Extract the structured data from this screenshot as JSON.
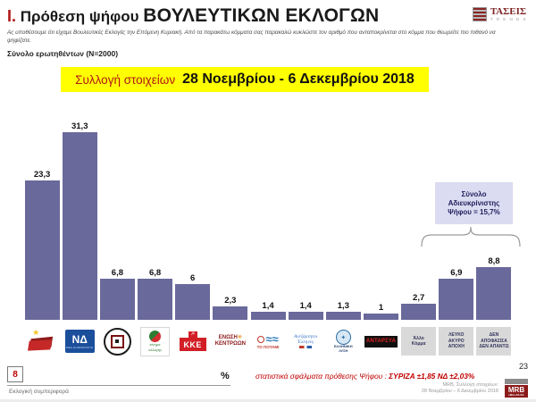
{
  "header": {
    "title_prefix": "Ι.",
    "title_main": " Πρόθεση ψήφου ",
    "title_caps": "ΒΟΥΛΕΥΤΙΚΩΝ ΕΚΛΟΓΩΝ",
    "subtitle": "Ας υποθέσουμε ότι είχαμε Βουλευτικές Εκλογές την Επόμενη Κυριακή. Από τα παρακάτω κόμματα σας παρακαλώ κυκλώστε τον αριθμό που ανταποκρίνεται στο κόμμα που θεωρείτε πιο πιθανό να ψηφίζατε.",
    "sample": "Σύνολο ερωτηθέντων (N=2000)",
    "banner_label": "Συλλογή στοιχείων",
    "banner_dates": "28 Νοεμβρίου - 6 Δεκεμβρίου 2018",
    "trends": {
      "name": "ΤΑΣΕΙΣ",
      "sub": "T R E N D S"
    }
  },
  "chart_data": {
    "type": "bar",
    "title": "Πρόθεση ψήφου Βουλευτικών Εκλογών",
    "ylabel": "%",
    "ylim": [
      0,
      35
    ],
    "grid": false,
    "bar_color": "#6a699b",
    "categories": [
      "ΣΥΡΙΖΑ",
      "ΝΔ",
      "ΧΡΥΣΗ ΑΥΓΗ",
      "ΚΙΝΗΜΑ ΑΛΛΑΓΗΣ",
      "ΚΚΕ",
      "ΕΝΩΣΗ ΚΕΝΤΡΩΩΝ",
      "ΤΟ ΠΟΤΑΜΙ",
      "ΑΝΕΞΑΡΤΗΤΟΙ ΕΛΛΗΝΕΣ",
      "ΕΛΛΗΝΙΚΗ ΛΥΣΗ",
      "ΑΝΤΑΡΣΥΑ",
      "Άλλο Κόμμα",
      "ΛΕΥΚΟ ΑΚΥΡΟ ΑΠΟΧΗ",
      "ΔΕΝ ΑΠΟΦΑΣΙΣΑ ΔΕΝ ΑΠΑΝΤΩ"
    ],
    "values": [
      23.3,
      31.3,
      6.8,
      6.8,
      6,
      2.3,
      1.4,
      1.4,
      1.3,
      1,
      2.7,
      6.9,
      8.8
    ],
    "value_labels": [
      "23,3",
      "31,3",
      "6,8",
      "6,8",
      "6",
      "2,3",
      "1,4",
      "1,4",
      "1,3",
      "1",
      "2,7",
      "6,9",
      "8,8"
    ],
    "annotation": {
      "lines": [
        "Σύνολο",
        "Αδιευκρίνιστης",
        "Ψήφου = 15,7%"
      ],
      "covers_categories": [
        "ΛΕΥΚΟ ΑΚΥΡΟ ΑΠΟΧΗ",
        "ΔΕΝ ΑΠΟΦΑΣΙΣΑ ΔΕΝ ΑΠΑΝΤΩ"
      ]
    },
    "logos": [
      {
        "kind": "syriza",
        "star": "★"
      },
      {
        "kind": "nd",
        "text": "ΝΔ",
        "sub": "ΝΕΑ ΔΗΜΟΚΡΑΤΙΑ"
      },
      {
        "kind": "xa"
      },
      {
        "kind": "kinal",
        "lines": [
          "κίνημα",
          "αλλαγής"
        ]
      },
      {
        "kind": "kke",
        "text": "ΚΚΕ",
        "emblem": "☭"
      },
      {
        "kind": "ek",
        "lines": [
          "ΕΝΩΣΗ",
          "ΚΕΝΤΡΩΩΝ"
        ],
        "sun": "✳"
      },
      {
        "kind": "potami",
        "wave": "≈≈",
        "text": "ΤΟ ΠΟΤΑΜΙ"
      },
      {
        "kind": "anel",
        "lines": [
          "Ανεξάρτητοι",
          "Έλληνες"
        ]
      },
      {
        "kind": "lysi",
        "emblem": "✦",
        "lines": [
          "ΕΛΛΗΝΙΚΗ",
          "ΛΥΣΗ"
        ]
      },
      {
        "kind": "antarsya",
        "text": "ΑΝΤΑΡΣΥΑ"
      },
      {
        "kind": "graybox",
        "lines": [
          "Άλλο",
          "Κόμμα"
        ]
      },
      {
        "kind": "graybox",
        "lines": [
          "ΛΕΥΚΟ",
          "ΑΚΥΡΟ",
          "ΑΠΟΧΗ"
        ]
      },
      {
        "kind": "graybox",
        "lines": [
          "ΔΕΝ",
          "ΑΠΟΦΑΣΙΣΑ",
          "ΔΕΝ ΑΠΑΝΤΩ"
        ]
      }
    ]
  },
  "footer": {
    "page_left": "8",
    "section": "Εκλογική συμπεριφορά",
    "percent": "%",
    "stats_prefix": "στατιστικά σφάλματα πρόθεσης Ψήφου : ",
    "stats_bold": "ΣΥΡΙΖΑ ±1,85 ΝΔ ±2,03%",
    "page_right": "23",
    "source_line1": "MRB, Συλλογή στοιχείων:",
    "source_line2": "28 Νοεμβρίου – 6 Δεκεμβρίου 2018",
    "mrb": "MRB",
    "mrb_sub": "HELLAS SA"
  }
}
